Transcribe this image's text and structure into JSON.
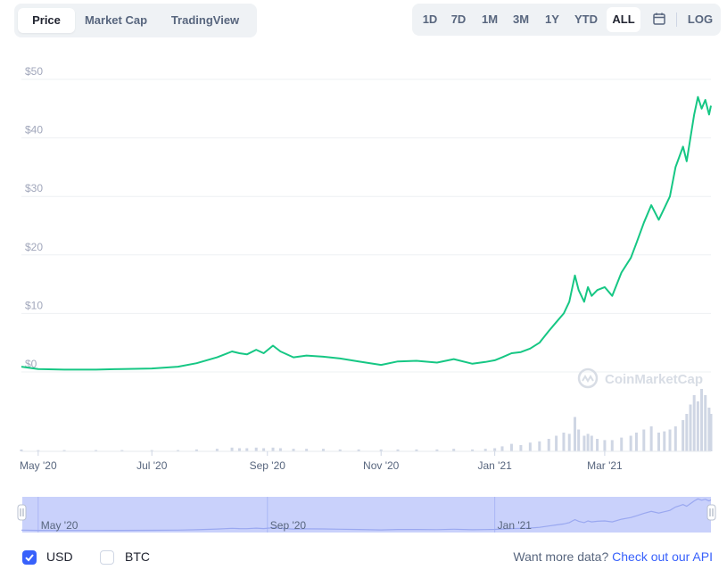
{
  "tabs": [
    {
      "label": "Price",
      "active": true
    },
    {
      "label": "Market Cap",
      "active": false
    },
    {
      "label": "TradingView",
      "active": false
    }
  ],
  "ranges": [
    {
      "label": "1D",
      "active": false
    },
    {
      "label": "7D",
      "active": false
    },
    {
      "label": "1M",
      "active": false
    },
    {
      "label": "3M",
      "active": false
    },
    {
      "label": "1Y",
      "active": false
    },
    {
      "label": "YTD",
      "active": false
    },
    {
      "label": "ALL",
      "active": true
    }
  ],
  "calendar_icon": "calendar-icon",
  "log_label": "LOG",
  "watermark": "CoinMarketCap",
  "currency": [
    {
      "label": "USD",
      "checked": true
    },
    {
      "label": "BTC",
      "checked": false
    }
  ],
  "more_data": {
    "text": "Want more data? ",
    "link": "Check out our API"
  },
  "colors": {
    "line": "#16c784",
    "volume": "#cfd6e4",
    "navigator": "#c9d1fb",
    "accent": "#3861fb"
  },
  "navigator_labels": [
    "May '20",
    "Sep '20",
    "Jan '21"
  ],
  "chart_data": {
    "type": "line",
    "title": "",
    "xlabel": "",
    "ylabel": "",
    "y_ticks": [
      "$0",
      "$10",
      "$20",
      "$30",
      "$40",
      "$50"
    ],
    "x_ticks": [
      "May '20",
      "Jul '20",
      "Sep '20",
      "Nov '20",
      "Jan '21",
      "Mar '21"
    ],
    "ylim": [
      0,
      50
    ],
    "xlim": [
      "2020-04-22",
      "2021-04-27"
    ],
    "grid": true,
    "series": [
      {
        "x": [
          "2020-04-22",
          "2020-05-01",
          "2020-05-15",
          "2020-06-01",
          "2020-06-15",
          "2020-07-01",
          "2020-07-15",
          "2020-07-25",
          "2020-08-05",
          "2020-08-13",
          "2020-08-17",
          "2020-08-21",
          "2020-08-26",
          "2020-08-30",
          "2020-09-04",
          "2020-09-08",
          "2020-09-15",
          "2020-09-22",
          "2020-10-01",
          "2020-10-10",
          "2020-10-20",
          "2020-11-01",
          "2020-11-10",
          "2020-11-20",
          "2020-12-01",
          "2020-12-10",
          "2020-12-20",
          "2020-12-27",
          "2021-01-01",
          "2021-01-05",
          "2021-01-10",
          "2021-01-15",
          "2021-01-20",
          "2021-01-25",
          "2021-01-30",
          "2021-02-03",
          "2021-02-07",
          "2021-02-10",
          "2021-02-13",
          "2021-02-15",
          "2021-02-18",
          "2021-02-20",
          "2021-02-22",
          "2021-02-25",
          "2021-03-01",
          "2021-03-05",
          "2021-03-10",
          "2021-03-15",
          "2021-03-18",
          "2021-03-22",
          "2021-03-26",
          "2021-03-30",
          "2021-04-02",
          "2021-04-05",
          "2021-04-08",
          "2021-04-12",
          "2021-04-14",
          "2021-04-16",
          "2021-04-18",
          "2021-04-20",
          "2021-04-22",
          "2021-04-24",
          "2021-04-26",
          "2021-04-27"
        ],
        "y": [
          0.9,
          0.5,
          0.4,
          0.4,
          0.5,
          0.6,
          0.9,
          1.5,
          2.5,
          3.5,
          3.2,
          3.0,
          3.8,
          3.2,
          4.5,
          3.5,
          2.5,
          2.8,
          2.6,
          2.3,
          1.8,
          1.2,
          1.8,
          1.9,
          1.6,
          2.2,
          1.4,
          1.7,
          2.0,
          2.5,
          3.2,
          3.4,
          4.0,
          5.0,
          7.0,
          8.5,
          10.0,
          12.0,
          16.5,
          14.0,
          12.0,
          14.5,
          13.0,
          14.0,
          14.5,
          13.0,
          17.0,
          19.5,
          22.0,
          25.5,
          28.5,
          26.0,
          28.0,
          30.0,
          35.0,
          38.5,
          36.0,
          40.0,
          44.0,
          47.0,
          45.0,
          46.5,
          44.0,
          45.5
        ]
      }
    ],
    "volume": [
      0.3,
      0.2,
      0.2,
      0.2,
      0.2,
      0.2,
      0.2,
      0.3,
      0.4,
      0.6,
      0.5,
      0.5,
      0.6,
      0.5,
      0.6,
      0.5,
      0.4,
      0.4,
      0.4,
      0.3,
      0.3,
      0.3,
      0.3,
      0.3,
      0.3,
      0.4,
      0.3,
      0.4,
      0.5,
      0.8,
      1.2,
      1.0,
      1.4,
      1.6,
      2.0,
      2.5,
      3.0,
      2.8,
      5.5,
      3.5,
      2.5,
      2.8,
      2.5,
      2.0,
      1.8,
      1.8,
      2.2,
      2.5,
      3.0,
      3.5,
      4.0,
      3.0,
      3.2,
      3.5,
      4.0,
      5.0,
      6.0,
      7.5,
      9.0,
      8.0,
      10.0,
      9.0,
      7.0,
      6.0
    ]
  }
}
